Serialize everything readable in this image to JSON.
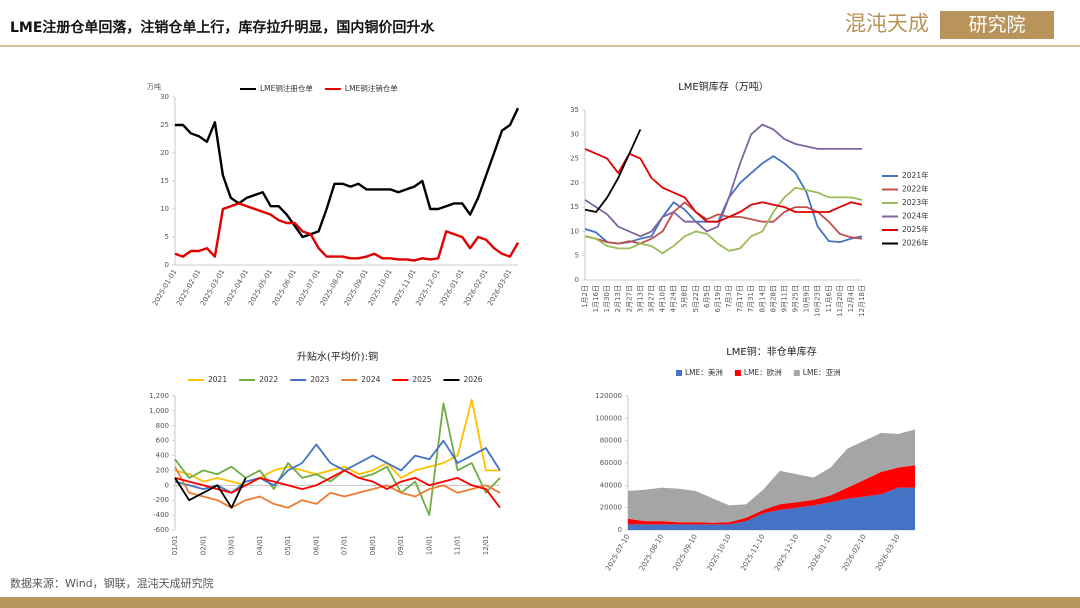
{
  "header": {
    "title": "LME注册仓单回落，注销仓单上行，库存拉升明显，国内铜价回升水",
    "logo_main": "混沌天成",
    "logo_box": "研究院"
  },
  "footer": {
    "source": "数据来源：Wind，钢联，混沌天成研究院"
  },
  "chart_data": [
    {
      "type": "line",
      "y_label": "万吨",
      "legend": "top",
      "grid": false,
      "categories": [
        "2025-01-01",
        null,
        null,
        "2025-02-01",
        null,
        null,
        "2025-03-01",
        null,
        null,
        "2025-04-01",
        null,
        null,
        "2025-05-01",
        null,
        null,
        "2025-06-01",
        null,
        null,
        "2025-07-01",
        null,
        null,
        "2025-08-01",
        null,
        null,
        "2025-09-01",
        null,
        null,
        "2025-10-01",
        null,
        null,
        "2025-11-01",
        null,
        null,
        "2025-12-01",
        null,
        null,
        "2026-01-01",
        null,
        null,
        "2026-02-01",
        null,
        null,
        "2026-03-01",
        null
      ],
      "ylim": [
        0,
        30
      ],
      "yticks": [
        0,
        5,
        10,
        15,
        20,
        25,
        30
      ],
      "series": [
        {
          "name": "LME铜注册仓单",
          "color": "#000000",
          "values": [
            25,
            25,
            23.5,
            23,
            22,
            25.5,
            16,
            12,
            11,
            12,
            12.5,
            13,
            10.5,
            10.5,
            9,
            7,
            5,
            5.5,
            6,
            10,
            14.5,
            14.5,
            14,
            14.5,
            13.5,
            13.5,
            13.5,
            13.5,
            13,
            13.5,
            14,
            15,
            10,
            10,
            10.5,
            11,
            11,
            9,
            12,
            16,
            20,
            24,
            25,
            28
          ]
        },
        {
          "name": "LME铜注销仓单",
          "color": "#e00000",
          "values": [
            2,
            1.5,
            2.5,
            2.5,
            3,
            1.5,
            10,
            10.5,
            11,
            10.5,
            10,
            9.5,
            9,
            8,
            7.5,
            7.5,
            6,
            5.5,
            3,
            1.5,
            1.5,
            1.5,
            1.2,
            1.2,
            1.5,
            2,
            1.2,
            1.2,
            1,
            1,
            0.8,
            1.2,
            1,
            1.2,
            6,
            5.5,
            5,
            3,
            5,
            4.5,
            3,
            2,
            1.5,
            4
          ]
        }
      ]
    },
    {
      "type": "line",
      "title": "LME铜库存（万吨）",
      "legend": "right",
      "grid": false,
      "categories": [
        "1月2日",
        "1月16日",
        "1月30日",
        "2月13日",
        "2月27日",
        "3月13日",
        "3月27日",
        "4月10日",
        "4月24日",
        "5月8日",
        "5月22日",
        "6月5日",
        "6月19日",
        "7月3日",
        "7月17日",
        "7月31日",
        "8月14日",
        "8月28日",
        "9月11日",
        "9月25日",
        "10月9日",
        "10月23日",
        "11月6日",
        "11月20日",
        "12月4日",
        "12月18日"
      ],
      "ylim": [
        0,
        35
      ],
      "yticks": [
        0,
        5,
        10,
        15,
        20,
        25,
        30,
        35
      ],
      "series": [
        {
          "name": "2021年",
          "color": "#4472c4",
          "values": [
            10.5,
            9.8,
            7.8,
            7.5,
            7.8,
            8.5,
            9,
            13,
            16,
            14.5,
            12,
            12,
            12,
            17,
            20,
            22,
            24,
            25.5,
            24,
            22,
            18,
            11,
            8,
            7.8,
            8.5,
            9
          ]
        },
        {
          "name": "2022年",
          "color": "#c0504d",
          "values": [
            9,
            8.5,
            7.8,
            7.5,
            8,
            7.5,
            8.5,
            10,
            14,
            16,
            14,
            12.5,
            13.5,
            13,
            13,
            12.5,
            12,
            12,
            14,
            15,
            15,
            14,
            12,
            9.5,
            8.8,
            8.5
          ]
        },
        {
          "name": "2023年",
          "color": "#9bbb59",
          "values": [
            9,
            8.5,
            7,
            6.5,
            6.5,
            7.5,
            7,
            5.5,
            7,
            9,
            10,
            9.5,
            7.5,
            6,
            6.5,
            9,
            10,
            14,
            17,
            19,
            18.5,
            18,
            17,
            17,
            17,
            16.5
          ]
        },
        {
          "name": "2024年",
          "color": "#8064a2",
          "values": [
            16.5,
            15,
            13.5,
            11,
            10,
            9,
            10,
            13,
            14,
            12,
            12,
            10,
            11,
            17,
            24,
            30,
            32,
            31,
            29,
            28,
            27.5,
            27,
            27,
            27,
            27,
            27
          ]
        },
        {
          "name": "2025年",
          "color": "#e00000",
          "values": [
            27,
            26,
            25,
            22,
            26,
            25,
            21,
            19,
            18,
            17,
            14,
            12,
            12,
            13,
            14,
            15.5,
            16,
            15.5,
            15,
            14,
            14,
            14,
            14,
            15,
            16,
            15.5
          ]
        },
        {
          "name": "2026年",
          "color": "#000000",
          "values": [
            14.5,
            14,
            17,
            21,
            26,
            31,
            null,
            null,
            null,
            null,
            null,
            null,
            null,
            null,
            null,
            null,
            null,
            null,
            null,
            null,
            null,
            null,
            null,
            null,
            null,
            null
          ]
        }
      ]
    },
    {
      "type": "line",
      "title": "升贴水(平均价):铜",
      "legend": "top",
      "grid": false,
      "categories": [
        "01/01",
        null,
        "02/01",
        null,
        "03/01",
        null,
        "04/01",
        null,
        "05/01",
        null,
        "06/01",
        null,
        "07/01",
        null,
        "08/01",
        null,
        "09/01",
        null,
        "10/01",
        null,
        "11/01",
        null,
        "12/01",
        null
      ],
      "ylim": [
        -600,
        1200
      ],
      "yticks": [
        -600,
        -400,
        -200,
        0,
        200,
        400,
        600,
        800,
        {
          "value": 1000,
          "label": "1,000"
        },
        {
          "value": 1200,
          "label": "1,200"
        }
      ],
      "series": [
        {
          "name": "2021",
          "color": "#ffc000",
          "values": [
            200,
            150,
            50,
            100,
            50,
            0,
            100,
            200,
            250,
            200,
            150,
            200,
            250,
            150,
            200,
            300,
            100,
            200,
            250,
            300,
            400,
            1150,
            200,
            200
          ]
        },
        {
          "name": "2022",
          "color": "#70ad47",
          "values": [
            350,
            100,
            200,
            150,
            250,
            100,
            200,
            -50,
            300,
            100,
            150,
            50,
            200,
            100,
            150,
            250,
            -100,
            50,
            -400,
            1100,
            200,
            300,
            -100,
            100
          ]
        },
        {
          "name": "2023",
          "color": "#4472c4",
          "values": [
            50,
            0,
            -50,
            0,
            -100,
            50,
            100,
            0,
            200,
            300,
            550,
            300,
            200,
            300,
            400,
            300,
            200,
            400,
            350,
            600,
            300,
            400,
            500,
            200
          ]
        },
        {
          "name": "2024",
          "color": "#ed7d31",
          "values": [
            250,
            -100,
            -150,
            -200,
            -300,
            -200,
            -150,
            -250,
            -300,
            -200,
            -250,
            -100,
            -150,
            -100,
            -50,
            0,
            -100,
            -150,
            -50,
            0,
            -100,
            -50,
            0,
            -100
          ]
        },
        {
          "name": "2025",
          "color": "#ff0000",
          "values": [
            100,
            50,
            0,
            -50,
            -100,
            0,
            100,
            50,
            0,
            -50,
            0,
            100,
            200,
            100,
            50,
            -50,
            50,
            100,
            0,
            50,
            100,
            0,
            -50,
            -300
          ]
        },
        {
          "name": "2026",
          "color": "#000000",
          "values": [
            100,
            -200,
            -100,
            0,
            -300,
            100,
            null,
            null,
            null,
            null,
            null,
            null,
            null,
            null,
            null,
            null,
            null,
            null,
            null,
            null,
            null,
            null,
            null,
            null
          ]
        }
      ]
    },
    {
      "type": "area",
      "title": "LME铜：非仓单库存",
      "legend": "top",
      "grid": false,
      "stacked": true,
      "categories": [
        "2025-07-10",
        null,
        "2025-08-10",
        null,
        "2025-09-10",
        null,
        "2025-10-10",
        null,
        "2025-11-10",
        null,
        "2025-12-10",
        null,
        "2026-01-10",
        null,
        "2026-02-10",
        null,
        "2026-03-10",
        null
      ],
      "ylim": [
        0,
        120000
      ],
      "yticks": [
        0,
        20000,
        40000,
        60000,
        80000,
        100000,
        120000
      ],
      "series": [
        {
          "name": "LME：美洲",
          "color": "#4472c4",
          "values": [
            5000,
            5000,
            5000,
            5000,
            5000,
            5000,
            5000,
            8000,
            15000,
            18000,
            20000,
            22000,
            25000,
            28000,
            30000,
            32000,
            38000,
            38000
          ]
        },
        {
          "name": "LME：欧洲",
          "color": "#ff0000",
          "values": [
            5000,
            3000,
            3000,
            2000,
            2000,
            1500,
            2000,
            3000,
            3000,
            5000,
            5000,
            5000,
            6000,
            10000,
            15000,
            20000,
            18000,
            20000
          ]
        },
        {
          "name": "LME：亚洲",
          "color": "#a5a5a5",
          "values": [
            25000,
            28000,
            30000,
            30000,
            28000,
            22000,
            15000,
            12000,
            18000,
            30000,
            25000,
            20000,
            25000,
            35000,
            35000,
            35000,
            30000,
            32000
          ]
        }
      ]
    }
  ]
}
